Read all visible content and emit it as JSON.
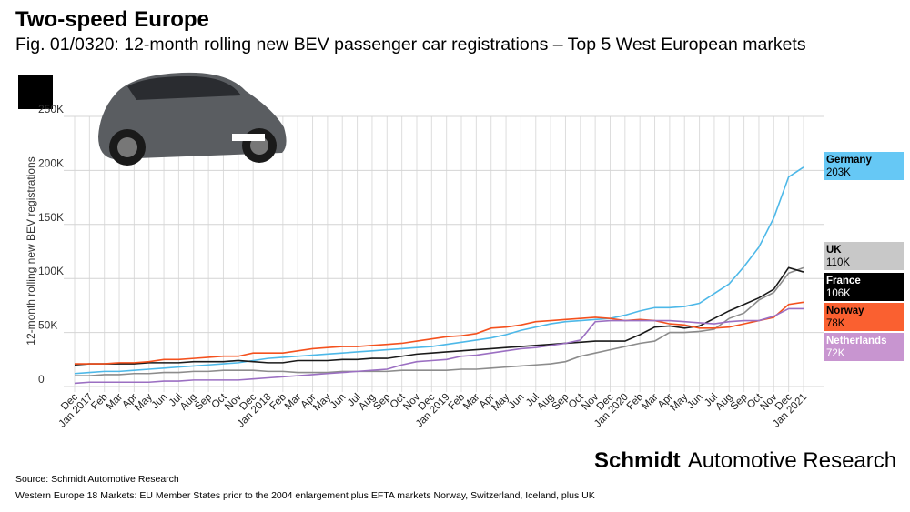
{
  "title": "Two-speed Europe",
  "subtitle": "Fig. 01/0320: 12-month rolling new BEV passenger car registrations – Top 5 West European markets",
  "brand": {
    "bold": "Schmidt",
    "rest": "Automotive Research"
  },
  "source": "Source: Schmidt Automotive Research",
  "note": "Western Europe 18 Markets: EU Member States prior to the 2004 enlargement plus EFTA markets Norway, Switzerland, Iceland, plus UK",
  "chart_data": {
    "type": "line",
    "ylabel": "12-month rolling new BEV registrations",
    "ylim": [
      0,
      250
    ],
    "yticks": [
      {
        "v": 0,
        "label": "0"
      },
      {
        "v": 50,
        "label": "50K"
      },
      {
        "v": 100,
        "label": "100K"
      },
      {
        "v": 150,
        "label": "150K"
      },
      {
        "v": 200,
        "label": "200K"
      },
      {
        "v": 250,
        "label": "250K"
      }
    ],
    "grid": true,
    "legend": "right",
    "categories": [
      "Dec",
      "Jan 2017",
      "Feb",
      "Mar",
      "Apr",
      "May",
      "Jun",
      "Jul",
      "Aug",
      "Sep",
      "Oct",
      "Nov",
      "Dec",
      "Jan 2018",
      "Feb",
      "Mar",
      "Apr",
      "May",
      "Jun",
      "Jul",
      "Aug",
      "Sep",
      "Oct",
      "Nov",
      "Dec",
      "Jan 2019",
      "Feb",
      "Mar",
      "Apr",
      "May",
      "Jun",
      "Jul",
      "Aug",
      "Sep",
      "Oct",
      "Nov",
      "Dec",
      "Jan 2020",
      "Feb",
      "Mar",
      "Apr",
      "May",
      "Jun",
      "Jul",
      "Aug",
      "Sep",
      "Oct",
      "Nov",
      "Dec",
      "Jan 2021"
    ],
    "series": [
      {
        "name": "Germany",
        "label": "203K",
        "color": "#4db8e8",
        "box": "#66c8f5",
        "text": "#000",
        "values": [
          12,
          13,
          14,
          14,
          15,
          16,
          17,
          18,
          19,
          20,
          21,
          22,
          24,
          26,
          27,
          28,
          29,
          30,
          31,
          32,
          33,
          34,
          35,
          36,
          37,
          39,
          41,
          43,
          45,
          48,
          52,
          55,
          58,
          60,
          61,
          62,
          63,
          66,
          70,
          73,
          73,
          74,
          77,
          86,
          95,
          111,
          129,
          156,
          194,
          203
        ]
      },
      {
        "name": "UK",
        "label": "110K",
        "color": "#8c8c8c",
        "box": "#c8c8c8",
        "text": "#000",
        "values": [
          10,
          10,
          11,
          11,
          12,
          12,
          13,
          13,
          14,
          14,
          15,
          15,
          15,
          14,
          14,
          13,
          13,
          13,
          14,
          14,
          14,
          14,
          15,
          15,
          15,
          15,
          16,
          16,
          17,
          18,
          19,
          20,
          21,
          23,
          28,
          31,
          34,
          37,
          40,
          42,
          50,
          50,
          51,
          53,
          63,
          68,
          80,
          87,
          105,
          110
        ]
      },
      {
        "name": "France",
        "label": "106K",
        "color": "#1a1a1a",
        "box": "#000000",
        "text": "#fff",
        "values": [
          20,
          21,
          21,
          21,
          21,
          22,
          22,
          22,
          23,
          23,
          23,
          24,
          23,
          22,
          22,
          24,
          24,
          24,
          25,
          25,
          26,
          26,
          28,
          30,
          31,
          32,
          33,
          34,
          35,
          36,
          37,
          38,
          39,
          40,
          41,
          42,
          42,
          42,
          48,
          55,
          56,
          54,
          56,
          63,
          70,
          76,
          82,
          90,
          110,
          106
        ]
      },
      {
        "name": "Norway",
        "label": "78K",
        "color": "#f4511e",
        "box": "#fa6030",
        "text": "#000",
        "values": [
          21,
          21,
          21,
          22,
          22,
          23,
          25,
          25,
          26,
          27,
          28,
          28,
          31,
          31,
          31,
          33,
          35,
          36,
          37,
          37,
          38,
          39,
          40,
          42,
          44,
          46,
          47,
          49,
          54,
          55,
          57,
          60,
          61,
          62,
          63,
          64,
          63,
          61,
          62,
          61,
          58,
          57,
          54,
          54,
          55,
          58,
          61,
          64,
          76,
          78
        ]
      },
      {
        "name": "Netherlands",
        "label": "72K",
        "color": "#9b6fc2",
        "box": "#c895d0",
        "text": "#fff",
        "values": [
          3,
          4,
          4,
          4,
          4,
          4,
          5,
          5,
          6,
          6,
          6,
          6,
          7,
          8,
          9,
          10,
          11,
          12,
          13,
          14,
          15,
          16,
          20,
          23,
          24,
          25,
          28,
          29,
          31,
          33,
          35,
          36,
          38,
          40,
          43,
          60,
          61,
          61,
          61,
          61,
          61,
          60,
          59,
          58,
          60,
          61,
          61,
          65,
          72,
          72
        ]
      }
    ]
  }
}
